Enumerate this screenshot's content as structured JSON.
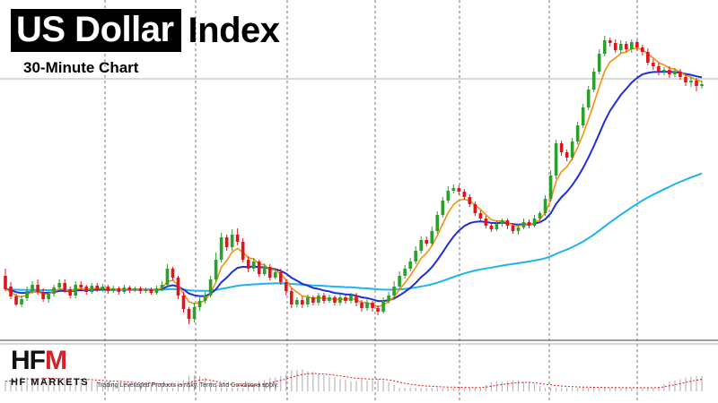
{
  "title": {
    "highlight": "US Dollar",
    "rest": "Index",
    "subtitle": "30-Minute Chart"
  },
  "logo": {
    "word_left": "HF",
    "word_right": "M",
    "tagline": "HF MARKETS"
  },
  "disclaimer": "Trading Leveraged Products is risky. Terms and Conditions apply.",
  "colors": {
    "bull": "#2ca02c",
    "bear": "#e0151b",
    "ma_fast": "#f5900d",
    "ma_mid": "#1f2fd6",
    "ma_slow": "#1db3f0",
    "background": "#ffffff",
    "grid": "#555555"
  },
  "chart_data": {
    "type": "candlestick",
    "timeframe": "30-Minute",
    "grid": "vertical dashed session separators",
    "ohlc": [
      [
        308,
        323,
        300,
        325
      ],
      [
        320,
        331,
        315,
        334
      ],
      [
        331,
        340,
        328,
        342
      ],
      [
        340,
        334,
        330,
        343
      ],
      [
        333,
        325,
        320,
        336
      ],
      [
        325,
        318,
        314,
        328
      ],
      [
        318,
        326,
        312,
        329
      ],
      [
        326,
        334,
        322,
        337
      ],
      [
        334,
        328,
        325,
        338
      ],
      [
        328,
        321,
        318,
        331
      ],
      [
        321,
        316,
        312,
        323
      ],
      [
        316,
        324,
        312,
        327
      ],
      [
        323,
        330,
        320,
        333
      ],
      [
        330,
        318,
        314,
        333
      ],
      [
        318,
        321,
        314,
        324
      ],
      [
        320,
        326,
        318,
        329
      ],
      [
        326,
        319,
        316,
        328
      ],
      [
        319,
        323,
        316,
        326
      ],
      [
        323,
        320,
        317,
        326
      ],
      [
        320,
        325,
        318,
        328
      ],
      [
        325,
        322,
        319,
        327
      ],
      [
        322,
        326,
        320,
        329
      ],
      [
        326,
        321,
        318,
        328
      ],
      [
        321,
        324,
        319,
        327
      ],
      [
        324,
        322,
        320,
        326
      ],
      [
        322,
        325,
        320,
        328
      ],
      [
        325,
        323,
        321,
        327
      ],
      [
        323,
        327,
        321,
        329
      ],
      [
        327,
        322,
        319,
        329
      ],
      [
        322,
        318,
        314,
        325
      ],
      [
        318,
        300,
        295,
        320
      ],
      [
        300,
        310,
        298,
        313
      ],
      [
        310,
        330,
        308,
        334
      ],
      [
        330,
        345,
        326,
        349
      ],
      [
        345,
        356,
        343,
        362
      ],
      [
        356,
        343,
        338,
        360
      ],
      [
        343,
        336,
        332,
        347
      ],
      [
        336,
        330,
        326,
        339
      ],
      [
        330,
        312,
        308,
        332
      ],
      [
        312,
        290,
        282,
        315
      ],
      [
        290,
        265,
        260,
        293
      ],
      [
        265,
        276,
        262,
        280
      ],
      [
        276,
        262,
        256,
        280
      ],
      [
        262,
        270,
        255,
        274
      ],
      [
        270,
        290,
        266,
        293
      ],
      [
        290,
        300,
        286,
        304
      ],
      [
        300,
        292,
        288,
        303
      ],
      [
        292,
        306,
        290,
        309
      ],
      [
        306,
        298,
        294,
        308
      ],
      [
        298,
        310,
        295,
        313
      ],
      [
        310,
        304,
        300,
        312
      ],
      [
        304,
        315,
        300,
        318
      ],
      [
        315,
        325,
        312,
        330
      ],
      [
        325,
        340,
        322,
        344
      ],
      [
        340,
        335,
        332,
        343
      ],
      [
        335,
        340,
        331,
        344
      ],
      [
        340,
        332,
        329,
        343
      ],
      [
        332,
        338,
        330,
        341
      ],
      [
        338,
        330,
        327,
        341
      ],
      [
        330,
        336,
        327,
        339
      ],
      [
        336,
        332,
        329,
        338
      ],
      [
        332,
        338,
        330,
        341
      ],
      [
        338,
        332,
        328,
        341
      ],
      [
        332,
        336,
        329,
        339
      ],
      [
        336,
        330,
        327,
        339
      ],
      [
        330,
        338,
        327,
        342
      ],
      [
        338,
        344,
        335,
        348
      ],
      [
        344,
        338,
        334,
        347
      ],
      [
        338,
        344,
        336,
        348
      ],
      [
        344,
        348,
        341,
        352
      ],
      [
        348,
        336,
        332,
        350
      ],
      [
        336,
        330,
        326,
        339
      ],
      [
        330,
        320,
        314,
        333
      ],
      [
        320,
        308,
        303,
        323
      ],
      [
        308,
        300,
        296,
        311
      ],
      [
        300,
        292,
        288,
        303
      ],
      [
        292,
        280,
        275,
        295
      ],
      [
        280,
        268,
        264,
        283
      ],
      [
        268,
        272,
        264,
        275
      ],
      [
        272,
        258,
        253,
        275
      ],
      [
        258,
        240,
        236,
        261
      ],
      [
        240,
        224,
        220,
        243
      ],
      [
        224,
        213,
        208,
        227
      ],
      [
        213,
        210,
        206,
        216
      ],
      [
        210,
        214,
        207,
        217
      ],
      [
        214,
        220,
        211,
        223
      ],
      [
        220,
        228,
        217,
        231
      ],
      [
        228,
        238,
        225,
        241
      ],
      [
        238,
        244,
        235,
        247
      ],
      [
        244,
        252,
        241,
        255
      ],
      [
        252,
        256,
        249,
        259
      ],
      [
        256,
        250,
        246,
        258
      ],
      [
        250,
        246,
        244,
        253
      ],
      [
        246,
        252,
        244,
        256
      ],
      [
        252,
        258,
        249,
        261
      ],
      [
        258,
        254,
        250,
        262
      ],
      [
        254,
        248,
        244,
        256
      ],
      [
        248,
        252,
        245,
        255
      ],
      [
        252,
        244,
        240,
        254
      ],
      [
        244,
        238,
        236,
        247
      ],
      [
        238,
        222,
        218,
        241
      ],
      [
        222,
        196,
        190,
        225
      ],
      [
        196,
        160,
        156,
        200
      ],
      [
        160,
        170,
        157,
        174
      ],
      [
        170,
        176,
        167,
        180
      ],
      [
        176,
        158,
        154,
        179
      ],
      [
        158,
        140,
        136,
        161
      ],
      [
        140,
        120,
        116,
        143
      ],
      [
        120,
        100,
        96,
        123
      ],
      [
        100,
        80,
        76,
        103
      ],
      [
        80,
        60,
        55,
        83
      ],
      [
        60,
        45,
        40,
        63
      ],
      [
        45,
        48,
        42,
        52
      ],
      [
        48,
        56,
        44,
        59
      ],
      [
        56,
        49,
        45,
        60
      ],
      [
        49,
        55,
        46,
        58
      ],
      [
        55,
        47,
        44,
        59
      ],
      [
        47,
        53,
        45,
        57
      ],
      [
        53,
        58,
        50,
        62
      ],
      [
        58,
        70,
        54,
        73
      ],
      [
        70,
        74,
        66,
        78
      ],
      [
        74,
        80,
        70,
        84
      ],
      [
        80,
        78,
        75,
        84
      ],
      [
        78,
        83,
        74,
        87
      ],
      [
        83,
        80,
        76,
        86
      ],
      [
        80,
        86,
        77,
        89
      ],
      [
        86,
        92,
        83,
        96
      ],
      [
        92,
        90,
        86,
        97
      ],
      [
        90,
        96,
        87,
        102
      ],
      [
        96,
        94,
        90,
        99
      ]
    ],
    "moving_averages": [
      {
        "role": "fast",
        "color": "#f5900d"
      },
      {
        "role": "medium",
        "color": "#1f2fd6"
      },
      {
        "role": "slow",
        "color": "#1db3f0"
      }
    ],
    "indicator_panel": {
      "type": "histogram with signal line"
    }
  }
}
